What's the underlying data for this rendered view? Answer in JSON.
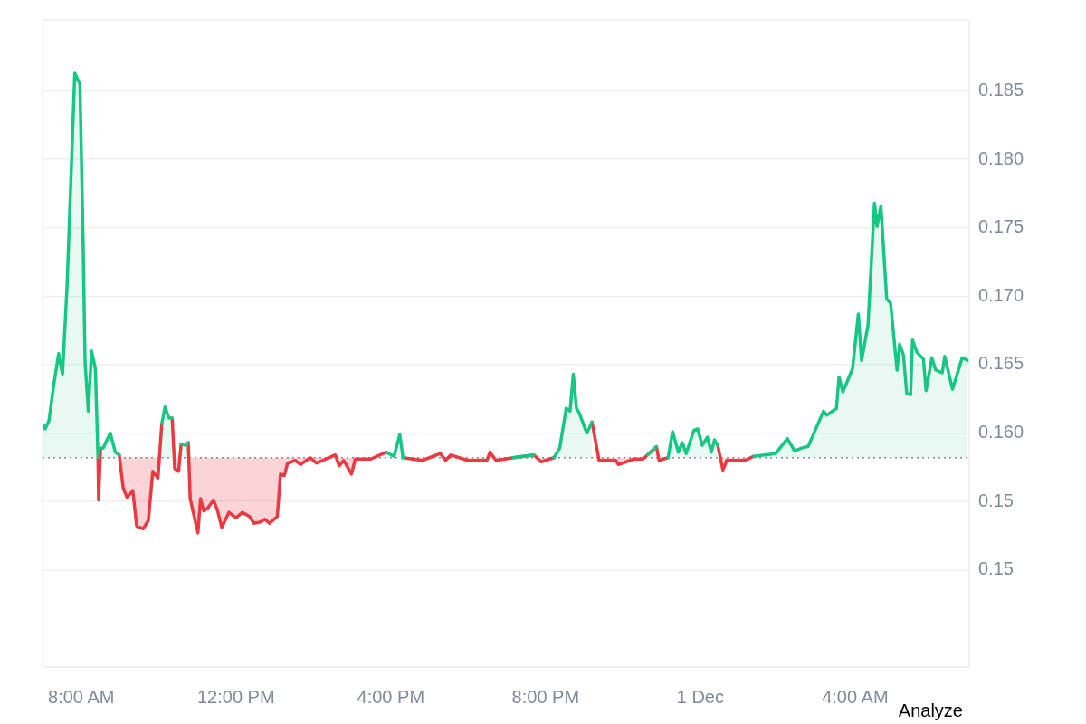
{
  "chart_data": {
    "type": "area",
    "annotations": [
      "Analyze"
    ],
    "xlim": [
      "--11-30T07:00",
      "--12-01T06:57"
    ],
    "ylim": [
      0.1429,
      0.1902
    ],
    "xticks": [
      {
        "value": "--11-30T08:00",
        "label": "8:00 AM"
      },
      {
        "value": "--11-30T12:00",
        "label": "12:00 PM"
      },
      {
        "value": "--11-30T16:00",
        "label": "4:00 PM"
      },
      {
        "value": "--11-30T20:00",
        "label": "8:00 PM"
      },
      {
        "value": "--12-01T00:00",
        "label": "1 Dec"
      },
      {
        "value": "--12-01T04:00",
        "label": "4:00 AM"
      }
    ],
    "yticks": [
      {
        "value": 0.15,
        "label": "0.15"
      },
      {
        "value": 0.155,
        "label": "0.15"
      },
      {
        "value": 0.16,
        "label": "0.160"
      },
      0.165,
      {
        "value": 0.17,
        "label": "0.170"
      },
      0.175,
      {
        "value": 0.18,
        "label": "0.180"
      },
      0.185
    ],
    "grid": "y",
    "legend": false,
    "marker": "none",
    "line_style": "solid",
    "ref_lines": [
      {
        "axis": "y",
        "value": 0.1582,
        "color": "#8a8a8a",
        "line_style": "dotted"
      }
    ],
    "x": [
      "--11-30T07:01",
      "--11-30T07:04",
      "--11-30T07:10",
      "--11-30T07:17",
      "--11-30T07:25",
      "--11-30T07:31",
      "--11-30T07:38",
      "--11-30T07:50",
      "--11-30T07:58",
      "--11-30T08:03",
      "--11-30T08:06",
      "--11-30T08:11",
      "--11-30T08:16",
      "--11-30T08:22",
      "--11-30T08:26",
      "--11-30T08:27",
      "--11-30T08:30",
      "--11-30T08:34",
      "--11-30T08:45",
      "--11-30T08:53",
      "--11-30T08:59",
      "--11-30T09:05",
      "--11-30T09:11",
      "--11-30T09:20",
      "--11-30T09:26",
      "--11-30T09:36",
      "--11-30T09:44",
      "--11-30T09:51",
      "--11-30T09:59",
      "--11-30T10:05",
      "--11-30T10:10",
      "--11-30T10:16",
      "--11-30T10:21",
      "--11-30T10:25",
      "--11-30T10:31",
      "--11-30T10:35",
      "--11-30T10:42",
      "--11-30T10:46",
      "--11-30T10:49",
      "--11-30T11:01",
      "--11-30T11:05",
      "--11-30T11:10",
      "--11-30T11:16",
      "--11-30T11:25",
      "--11-30T11:31",
      "--11-30T11:38",
      "--11-30T11:49",
      "--11-30T12:00",
      "--11-30T12:10",
      "--11-30T12:21",
      "--11-30T12:28",
      "--11-30T12:38",
      "--11-30T12:45",
      "--11-30T12:52",
      "--11-30T13:04",
      "--11-30T13:09",
      "--11-30T13:15",
      "--11-30T13:20",
      "--11-30T13:32",
      "--11-30T13:40",
      "--11-30T13:55",
      "--11-30T14:05",
      "--11-30T14:34",
      "--11-30T14:40",
      "--11-30T14:47",
      "--11-30T14:59",
      "--11-30T15:05",
      "--11-30T15:29",
      "--11-30T15:53",
      "--11-30T16:05",
      "--11-30T16:14",
      "--11-30T16:19",
      "--11-30T16:49",
      "--11-30T17:17",
      "--11-30T17:25",
      "--11-30T17:33",
      "--11-30T17:59",
      "--11-30T18:29",
      "--11-30T18:34",
      "--11-30T18:43",
      "--11-30T19:10",
      "--11-30T19:42",
      "--11-30T19:53",
      "--11-30T20:13",
      "--11-30T20:22",
      "--11-30T20:32",
      "--11-30T20:38",
      "--11-30T20:43",
      "--11-30T20:48",
      "--11-30T20:52",
      "--11-30T21:04",
      "--11-30T21:12",
      "--11-30T21:23",
      "--11-30T21:49",
      "--11-30T21:53",
      "--11-30T22:17",
      "--11-30T22:31",
      "--11-30T22:38",
      "--11-30T22:52",
      "--11-30T22:56",
      "--11-30T23:10",
      "--11-30T23:17",
      "--11-30T23:26",
      "--11-30T23:32",
      "--11-30T23:38",
      "--11-30T23:50",
      "--11-30T23:56",
      "--12-01T00:03",
      "--12-01T00:11",
      "--12-01T00:17",
      "--12-01T00:22",
      "--12-01T00:27",
      "--12-01T00:35",
      "--12-01T00:41",
      "--12-01T01:09",
      "--12-01T01:23",
      "--12-01T01:57",
      "--12-01T02:15",
      "--12-01T02:26",
      "--12-01T02:43",
      "--12-01T02:47",
      "--12-01T03:11",
      "--12-01T03:16",
      "--12-01T03:31",
      "--12-01T03:35",
      "--12-01T03:41",
      "--12-01T03:56",
      "--12-01T04:05",
      "--12-01T04:10",
      "--12-01T04:20",
      "--12-01T04:30",
      "--12-01T04:34",
      "--12-01T04:40",
      "--12-01T04:49",
      "--12-01T04:55",
      "--12-01T05:05",
      "--12-01T05:09",
      "--12-01T05:15",
      "--12-01T05:20",
      "--12-01T05:26",
      "--12-01T05:29",
      "--12-01T05:36",
      "--12-01T05:46",
      "--12-01T05:50",
      "--12-01T05:59",
      "--12-01T06:05",
      "--12-01T06:15",
      "--12-01T06:19",
      "--12-01T06:31",
      "--12-01T06:46",
      "--12-01T06:55"
    ],
    "series": [
      {
        "color": "#16c784",
        "values": [
          0.1606,
          0.1603,
          0.1609,
          0.1634,
          0.1658,
          0.1643,
          0.1707,
          0.1863,
          0.1855,
          0.1738,
          0.1652,
          0.1616,
          0.166,
          0.1647,
          0.1582,
          null,
          0.1589,
          0.1589,
          0.16,
          0.1586,
          0.1584,
          null,
          null,
          null,
          null,
          null,
          null,
          null,
          null,
          0.1607,
          0.1619,
          0.1611,
          0.1611,
          null,
          null,
          0.1592,
          0.1591,
          0.1593,
          null,
          null,
          null,
          null,
          null,
          null,
          null,
          null,
          null,
          null,
          null,
          null,
          null,
          null,
          null,
          null,
          null,
          null,
          null,
          null,
          null,
          null,
          null,
          null,
          null,
          null,
          null,
          null,
          null,
          null,
          0.1586,
          0.1583,
          0.1599,
          0.1582,
          null,
          null,
          null,
          null,
          null,
          null,
          null,
          null,
          0.1582,
          0.1584,
          null,
          0.1582,
          0.1589,
          0.1618,
          0.1616,
          0.1643,
          0.1618,
          0.1615,
          0.16,
          0.1608,
          null,
          null,
          null,
          null,
          null,
          0.1584,
          0.159,
          null,
          0.1582,
          0.1601,
          0.1586,
          0.1593,
          0.1585,
          0.1602,
          0.1603,
          0.1591,
          0.1597,
          0.1586,
          0.1595,
          0.1591,
          null,
          null,
          null,
          0.1583,
          0.1585,
          0.1596,
          0.1587,
          0.159,
          0.159,
          0.1616,
          0.1613,
          0.1618,
          0.1641,
          0.163,
          0.1647,
          0.1687,
          0.1653,
          0.1679,
          0.1768,
          0.1751,
          0.1766,
          0.1698,
          0.1695,
          0.1646,
          0.1665,
          0.1657,
          0.1629,
          0.1628,
          0.1668,
          0.1659,
          0.1654,
          0.1631,
          0.1655,
          0.1646,
          0.1644,
          0.1656,
          0.1632,
          0.1655,
          0.1653
        ]
      },
      {
        "color": "#ea3943",
        "values": [
          null,
          null,
          null,
          null,
          null,
          null,
          null,
          null,
          null,
          null,
          null,
          null,
          null,
          null,
          0.1582,
          0.1551,
          0.1589,
          null,
          null,
          null,
          0.1584,
          0.156,
          0.1553,
          0.1558,
          0.1532,
          0.153,
          0.1536,
          0.1572,
          0.1567,
          0.1607,
          null,
          null,
          0.1611,
          0.1574,
          0.1572,
          0.1592,
          null,
          0.1593,
          0.1552,
          0.1527,
          0.1552,
          0.1543,
          0.1545,
          0.1551,
          0.1544,
          0.1531,
          0.1542,
          0.1538,
          0.1542,
          0.1539,
          0.1534,
          0.1535,
          0.1537,
          0.1534,
          0.1539,
          0.157,
          0.1569,
          0.1578,
          0.158,
          0.1577,
          0.1582,
          0.1578,
          0.1584,
          0.1576,
          0.158,
          0.157,
          0.1581,
          0.1581,
          0.1586,
          null,
          null,
          0.1582,
          0.158,
          0.1585,
          0.158,
          0.1584,
          0.158,
          0.158,
          0.1586,
          0.158,
          0.1582,
          0.1584,
          0.1579,
          0.1582,
          null,
          null,
          null,
          null,
          null,
          null,
          null,
          0.1608,
          0.158,
          0.158,
          0.1577,
          0.1581,
          0.1581,
          0.1584,
          0.159,
          0.158,
          0.1582,
          null,
          null,
          null,
          null,
          null,
          null,
          null,
          null,
          null,
          null,
          0.1591,
          0.1573,
          0.158,
          0.158,
          0.1583,
          null,
          null,
          null,
          null,
          null,
          null,
          null,
          null,
          null,
          null,
          null,
          null,
          null,
          null,
          null,
          null,
          null,
          null,
          null,
          null,
          null,
          null,
          null,
          null,
          null,
          null,
          null,
          null,
          null,
          null,
          null,
          null,
          null,
          null,
          null
        ]
      }
    ]
  }
}
